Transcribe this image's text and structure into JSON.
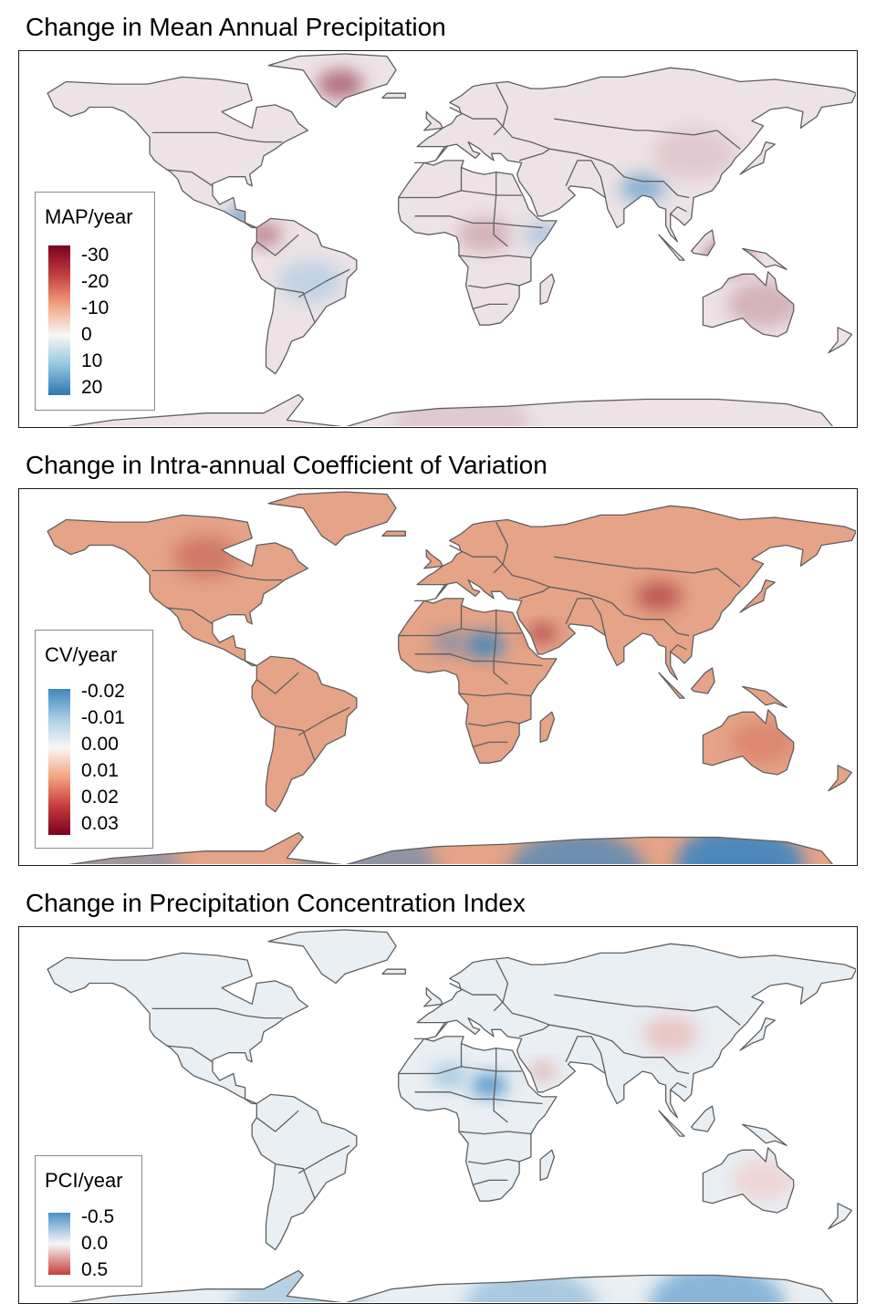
{
  "panels": [
    {
      "title": "Change in Mean Annual Precipitation",
      "legend": {
        "title": "MAP/year",
        "labels": [
          "-30",
          "-20",
          "-10",
          "0",
          "10",
          "20"
        ],
        "colors": [
          "#7a0020",
          "#c2403f",
          "#f4a582",
          "#f7f7f7",
          "#92c5de",
          "#2f76b6"
        ]
      },
      "hotspots": [
        {
          "lon": -85,
          "lat": 13,
          "v": -1.0,
          "r": 5
        },
        {
          "lon": 88,
          "lat": 25,
          "v": -0.6,
          "r": 10
        },
        {
          "lon": 125,
          "lat": -5,
          "v": 0.9,
          "r": 9
        },
        {
          "lon": -42,
          "lat": 70,
          "v": 0.6,
          "r": 10
        },
        {
          "lon": -75,
          "lat": 5,
          "v": 0.5,
          "r": 8
        },
        {
          "lon": 20,
          "lat": 5,
          "v": 0.3,
          "r": 12
        },
        {
          "lon": 45,
          "lat": 5,
          "v": -0.4,
          "r": 8
        },
        {
          "lon": -55,
          "lat": -15,
          "v": -0.3,
          "r": 14
        },
        {
          "lon": 110,
          "lat": 40,
          "v": 0.2,
          "r": 18
        },
        {
          "lon": 140,
          "lat": -25,
          "v": 0.3,
          "r": 16
        },
        {
          "lon": 10,
          "lat": -78,
          "v": 0.2,
          "r": 30
        }
      ]
    },
    {
      "title": "Change in Intra-annual Coefficient of Variation",
      "legend": {
        "title": "CV/year",
        "labels": [
          "-0.02",
          "-0.01",
          "0.00",
          "0.01",
          "0.02",
          "0.03"
        ],
        "colors": [
          "#3d86c0",
          "#a6cde3",
          "#f7f7f7",
          "#f4a582",
          "#c83c3c",
          "#7a0020"
        ]
      },
      "hotspots": [
        {
          "lon": 20,
          "lat": 17,
          "v": 1.0,
          "r": 9
        },
        {
          "lon": 5,
          "lat": 18,
          "v": 0.6,
          "r": 8
        },
        {
          "lon": 45,
          "lat": 22,
          "v": -0.6,
          "r": 6
        },
        {
          "lon": 95,
          "lat": 38,
          "v": -0.5,
          "r": 10
        },
        {
          "lon": -100,
          "lat": 55,
          "v": -0.3,
          "r": 14
        },
        {
          "lon": 130,
          "lat": -78,
          "v": 1.0,
          "r": 28
        },
        {
          "lon": 60,
          "lat": -82,
          "v": 0.8,
          "r": 30
        },
        {
          "lon": -30,
          "lat": -80,
          "v": 0.6,
          "r": 30
        },
        {
          "lon": -140,
          "lat": -80,
          "v": 0.5,
          "r": 30
        },
        {
          "lon": 140,
          "lat": -25,
          "v": -0.2,
          "r": 14
        }
      ]
    },
    {
      "title": "Change in Precipitation Concentration Index",
      "legend": {
        "title": "PCI/year",
        "labels": [
          "-0.5",
          "0.0",
          "0.5"
        ],
        "colors": [
          "#4a90c6",
          "#f7f7f7",
          "#c83c3c"
        ]
      },
      "hotspots": [
        {
          "lon": 22,
          "lat": 16,
          "v": 1.0,
          "r": 8
        },
        {
          "lon": 5,
          "lat": 20,
          "v": 0.5,
          "r": 8
        },
        {
          "lon": 45,
          "lat": 22,
          "v": -0.4,
          "r": 6
        },
        {
          "lon": 100,
          "lat": 38,
          "v": -0.3,
          "r": 12
        },
        {
          "lon": 120,
          "lat": -80,
          "v": 0.7,
          "r": 30
        },
        {
          "lon": 40,
          "lat": -82,
          "v": 0.5,
          "r": 30
        },
        {
          "lon": -60,
          "lat": -80,
          "v": 0.4,
          "r": 30
        },
        {
          "lon": 140,
          "lat": -25,
          "v": -0.2,
          "r": 14
        }
      ]
    }
  ],
  "colors": {
    "border": "#5f5f5f",
    "land_base": "#f6eeee",
    "frame": "#1a1a1a"
  }
}
